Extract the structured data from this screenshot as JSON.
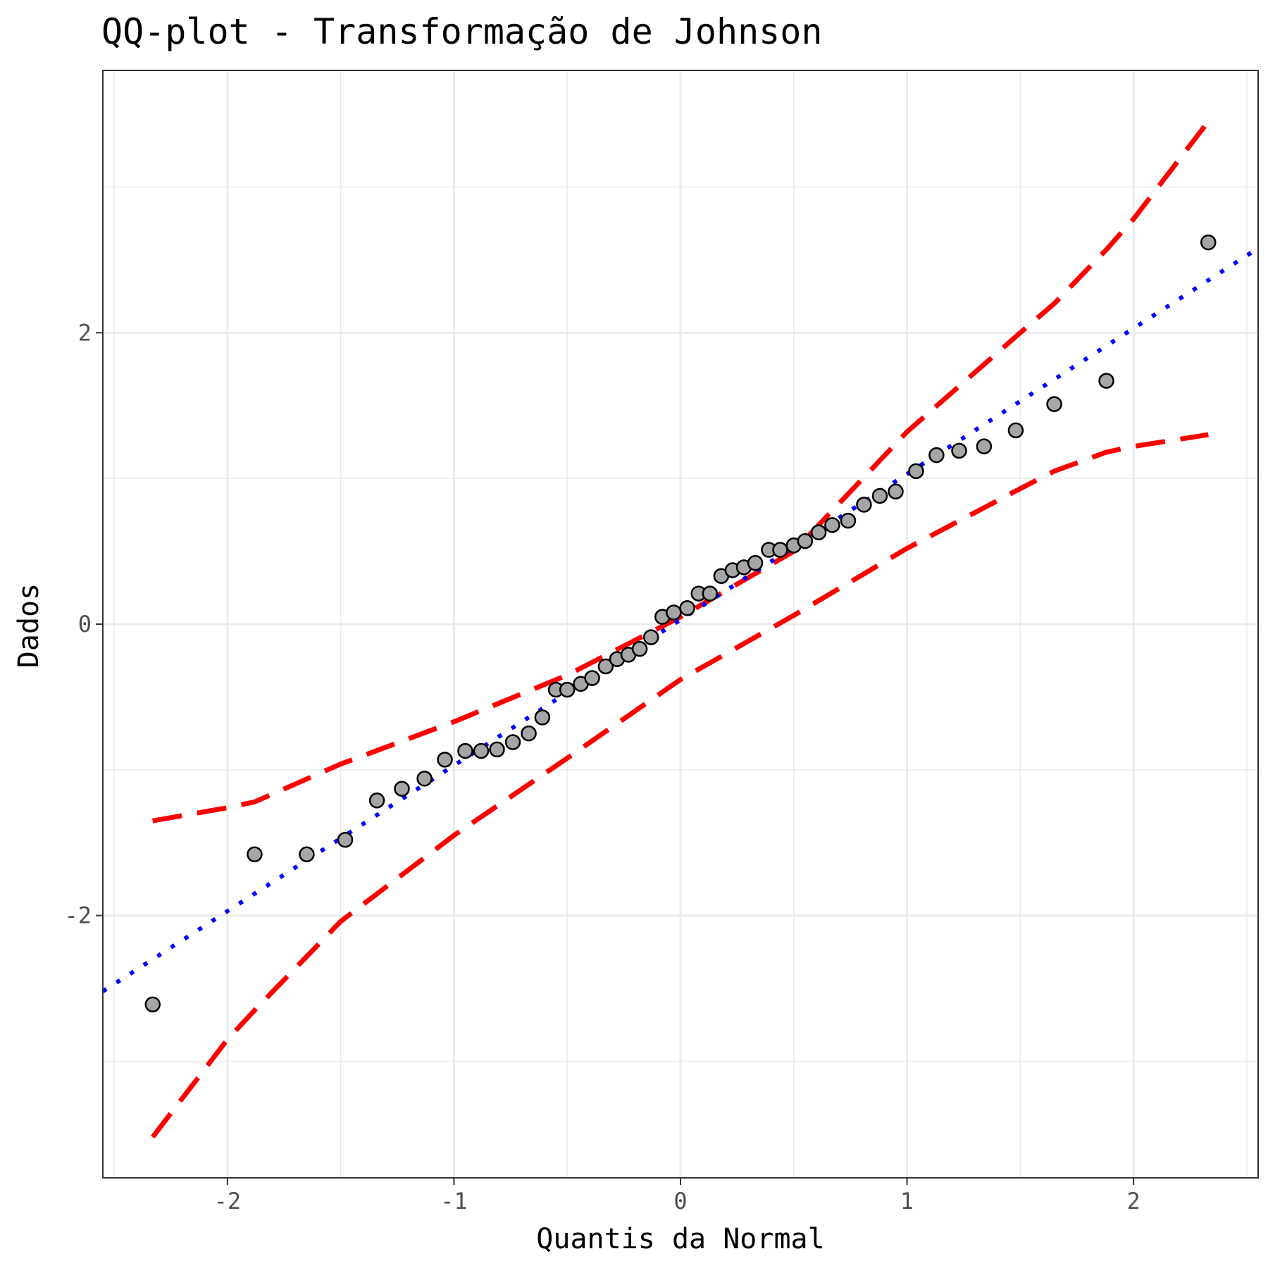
{
  "chart_data": {
    "type": "scatter",
    "title": "QQ-plot - Transformação de Johnson",
    "xlabel": "Quantis da Normal",
    "ylabel": "Dados",
    "xlim": [
      -2.55,
      2.55
    ],
    "ylim": [
      -3.8,
      3.8
    ],
    "x_ticks": [
      -2,
      -1,
      0,
      1,
      2
    ],
    "x_tick_labels": [
      "-2",
      "-1",
      "0",
      "1",
      "2"
    ],
    "y_ticks": [
      -2,
      0,
      2
    ],
    "y_tick_labels": [
      "-2",
      "0",
      "2"
    ],
    "grid": true,
    "theme": "bw",
    "colors": {
      "points_fill": "#a6a6a6",
      "points_stroke": "#000000",
      "reference_line": "#0000ff",
      "confidence_band": "#ff0000",
      "grid": "#ebebeb",
      "panel_border": "#333333"
    },
    "points": {
      "x": [
        -2.33,
        -1.88,
        -1.65,
        -1.48,
        -1.34,
        -1.23,
        -1.13,
        -1.04,
        -0.95,
        -0.88,
        -0.81,
        -0.74,
        -0.67,
        -0.61,
        -0.55,
        -0.5,
        -0.44,
        -0.39,
        -0.33,
        -0.28,
        -0.23,
        -0.18,
        -0.13,
        -0.08,
        -0.03,
        0.03,
        0.08,
        0.13,
        0.18,
        0.23,
        0.28,
        0.33,
        0.39,
        0.44,
        0.5,
        0.55,
        0.61,
        0.67,
        0.74,
        0.81,
        0.88,
        0.95,
        1.04,
        1.13,
        1.23,
        1.34,
        1.48,
        1.65,
        1.88,
        2.33
      ],
      "y": [
        -2.61,
        -1.58,
        -1.58,
        -1.48,
        -1.21,
        -1.13,
        -1.06,
        -0.93,
        -0.87,
        -0.87,
        -0.86,
        -0.81,
        -0.75,
        -0.64,
        -0.45,
        -0.45,
        -0.41,
        -0.37,
        -0.29,
        -0.24,
        -0.21,
        -0.17,
        -0.09,
        0.05,
        0.08,
        0.11,
        0.21,
        0.21,
        0.33,
        0.37,
        0.39,
        0.42,
        0.51,
        0.51,
        0.54,
        0.57,
        0.63,
        0.68,
        0.71,
        0.82,
        0.88,
        0.91,
        1.05,
        1.16,
        1.19,
        1.22,
        1.33,
        1.51,
        1.67,
        2.62
      ]
    },
    "reference_line": {
      "style": "dotted",
      "intercept": 0.03,
      "slope": 1.0
    },
    "confidence_band": {
      "style": "dashed",
      "x": [
        -2.33,
        -2.0,
        -1.88,
        -1.5,
        -1.0,
        -0.5,
        0.0,
        0.5,
        1.0,
        1.5,
        1.65,
        1.88,
        2.0,
        2.33
      ],
      "upper": [
        -1.35,
        -1.26,
        -1.22,
        -0.96,
        -0.67,
        -0.35,
        0.05,
        0.5,
        1.32,
        2.0,
        2.2,
        2.57,
        2.78,
        3.45
      ],
      "lower": [
        -3.52,
        -2.85,
        -2.65,
        -2.04,
        -1.45,
        -0.92,
        -0.38,
        0.06,
        0.52,
        0.93,
        1.05,
        1.18,
        1.22,
        1.3
      ]
    }
  }
}
